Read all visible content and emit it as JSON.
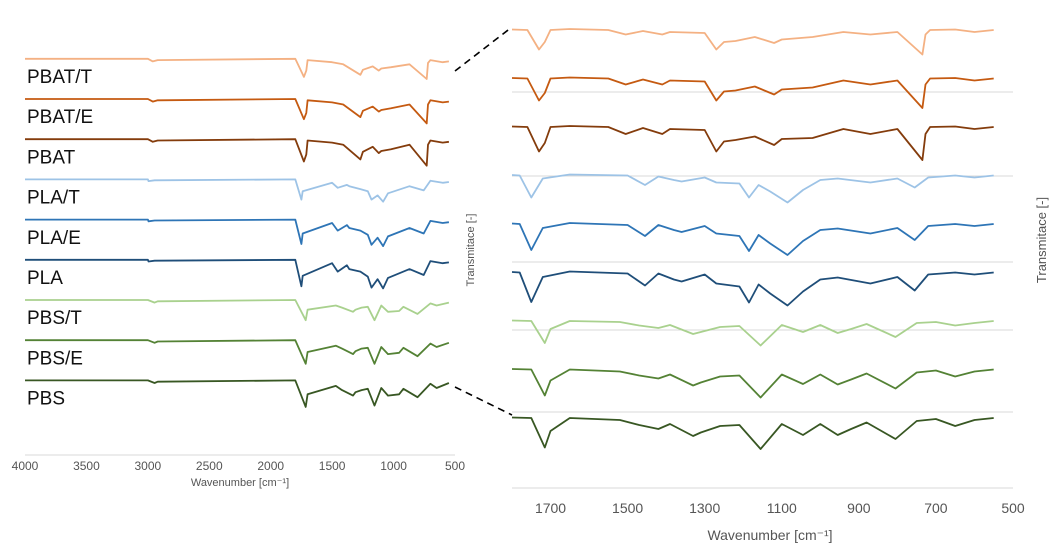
{
  "colors": {
    "PBAT/T": "#f4b183",
    "PBAT/E": "#c55a11",
    "PBAT": "#843c0c",
    "PLA/T": "#9dc3e6",
    "PLA/E": "#2e75b6",
    "PLA": "#1f4e79",
    "PBS/T": "#a9d18e",
    "PBS/E": "#548235",
    "PBS": "#385723",
    "grid": "#d9d9d9",
    "zoom_line": "#000000"
  },
  "chart_data": [
    {
      "type": "line",
      "title": "",
      "xlabel": "Wavenumber [cm⁻¹]",
      "ylabel": "Transmitace [-]",
      "xlim": [
        4000,
        500
      ],
      "x_reversed": true,
      "x_ticks": [
        "4000",
        "3500",
        "3000",
        "2500",
        "2000",
        "1500",
        "1000",
        "500"
      ],
      "legend": "labels above each trace",
      "series": [
        {
          "name": "PBAT/T",
          "x": [
            4000,
            3000,
            2960,
            2920,
            1800,
            1730,
            1710,
            1700,
            1500,
            1410,
            1270,
            1250,
            1170,
            1120,
            1100,
            1020,
            870,
            730,
            720,
            700,
            600,
            550
          ],
          "values": [
            0.98,
            0.98,
            0.92,
            0.95,
            0.98,
            0.55,
            0.7,
            0.95,
            0.9,
            0.85,
            0.6,
            0.72,
            0.8,
            0.7,
            0.75,
            0.78,
            0.85,
            0.5,
            0.88,
            0.95,
            0.9,
            0.92
          ]
        },
        {
          "name": "PBAT/E",
          "x": [
            4000,
            3000,
            2960,
            2920,
            1800,
            1730,
            1710,
            1700,
            1500,
            1410,
            1270,
            1250,
            1170,
            1120,
            1100,
            1020,
            870,
            730,
            720,
            700,
            600,
            550
          ],
          "values": [
            0.98,
            0.98,
            0.92,
            0.95,
            0.98,
            0.5,
            0.65,
            0.95,
            0.9,
            0.85,
            0.55,
            0.7,
            0.8,
            0.68,
            0.72,
            0.76,
            0.85,
            0.4,
            0.85,
            0.95,
            0.9,
            0.92
          ]
        },
        {
          "name": "PBAT",
          "x": [
            4000,
            3000,
            2960,
            2920,
            1800,
            1730,
            1710,
            1700,
            1500,
            1410,
            1270,
            1250,
            1170,
            1120,
            1100,
            1020,
            870,
            730,
            720,
            700,
            600,
            550
          ],
          "values": [
            0.98,
            0.98,
            0.92,
            0.95,
            0.98,
            0.45,
            0.62,
            0.95,
            0.9,
            0.85,
            0.5,
            0.68,
            0.8,
            0.65,
            0.7,
            0.74,
            0.85,
            0.35,
            0.85,
            0.95,
            0.9,
            0.92
          ]
        },
        {
          "name": "PLA/T",
          "x": [
            4000,
            3000,
            2995,
            2945,
            1800,
            1750,
            1740,
            1500,
            1455,
            1380,
            1360,
            1270,
            1210,
            1180,
            1130,
            1085,
            1045,
            870,
            755,
            700,
            600,
            550
          ],
          "values": [
            0.98,
            0.98,
            0.94,
            0.96,
            0.98,
            0.5,
            0.7,
            0.9,
            0.78,
            0.85,
            0.82,
            0.75,
            0.7,
            0.5,
            0.6,
            0.45,
            0.65,
            0.82,
            0.72,
            0.95,
            0.9,
            0.92
          ]
        },
        {
          "name": "PLA/E",
          "x": [
            4000,
            3000,
            2995,
            2945,
            1800,
            1750,
            1740,
            1500,
            1455,
            1380,
            1360,
            1270,
            1210,
            1180,
            1130,
            1085,
            1045,
            870,
            755,
            700,
            600,
            550
          ],
          "values": [
            0.98,
            0.98,
            0.94,
            0.96,
            0.98,
            0.4,
            0.65,
            0.9,
            0.72,
            0.85,
            0.78,
            0.72,
            0.62,
            0.38,
            0.55,
            0.35,
            0.58,
            0.78,
            0.65,
            0.95,
            0.9,
            0.92
          ]
        },
        {
          "name": "PLA",
          "x": [
            4000,
            3000,
            2995,
            2945,
            1800,
            1750,
            1740,
            1500,
            1455,
            1380,
            1360,
            1270,
            1210,
            1180,
            1130,
            1085,
            1045,
            870,
            755,
            700,
            600,
            550
          ],
          "values": [
            0.98,
            0.98,
            0.94,
            0.96,
            0.98,
            0.35,
            0.6,
            0.9,
            0.7,
            0.85,
            0.76,
            0.7,
            0.58,
            0.32,
            0.52,
            0.3,
            0.55,
            0.76,
            0.62,
            0.95,
            0.9,
            0.92
          ]
        },
        {
          "name": "PBS/T",
          "x": [
            4000,
            3000,
            2945,
            2920,
            1800,
            1715,
            1700,
            1470,
            1420,
            1330,
            1310,
            1260,
            1210,
            1155,
            1100,
            1045,
            955,
            920,
            805,
            700,
            650,
            550
          ],
          "values": [
            0.98,
            0.98,
            0.92,
            0.95,
            0.98,
            0.5,
            0.75,
            0.85,
            0.8,
            0.7,
            0.75,
            0.8,
            0.82,
            0.5,
            0.85,
            0.7,
            0.72,
            0.82,
            0.65,
            0.9,
            0.85,
            0.92
          ]
        },
        {
          "name": "PBS/E",
          "x": [
            4000,
            3000,
            2945,
            2920,
            1800,
            1715,
            1700,
            1470,
            1420,
            1330,
            1310,
            1260,
            1210,
            1155,
            1100,
            1045,
            955,
            920,
            805,
            700,
            650,
            550
          ],
          "values": [
            0.98,
            0.98,
            0.92,
            0.95,
            0.98,
            0.42,
            0.7,
            0.85,
            0.78,
            0.65,
            0.72,
            0.78,
            0.8,
            0.42,
            0.82,
            0.65,
            0.68,
            0.8,
            0.6,
            0.9,
            0.82,
            0.92
          ]
        },
        {
          "name": "PBS",
          "x": [
            4000,
            3000,
            2945,
            2920,
            1800,
            1715,
            1700,
            1470,
            1420,
            1330,
            1310,
            1260,
            1210,
            1155,
            1100,
            1045,
            955,
            920,
            805,
            700,
            650,
            550
          ],
          "values": [
            0.98,
            0.98,
            0.92,
            0.95,
            0.98,
            0.35,
            0.65,
            0.85,
            0.75,
            0.62,
            0.7,
            0.75,
            0.78,
            0.38,
            0.8,
            0.62,
            0.65,
            0.78,
            0.58,
            0.9,
            0.8,
            0.92
          ]
        }
      ]
    },
    {
      "type": "line",
      "title": "",
      "xlabel": "Wavenumber [cm⁻¹]",
      "ylabel": "Transmitace [-]",
      "xlim": [
        1800,
        500
      ],
      "x_reversed": true,
      "x_ticks": [
        "1700",
        "1500",
        "1300",
        "1100",
        "900",
        "700",
        "500"
      ],
      "legend": "none",
      "series": [
        {
          "name": "PBAT/T",
          "x": [
            1800,
            1760,
            1730,
            1715,
            1700,
            1650,
            1550,
            1505,
            1460,
            1410,
            1390,
            1300,
            1270,
            1250,
            1220,
            1170,
            1120,
            1100,
            1020,
            940,
            870,
            800,
            735,
            727,
            715,
            650,
            600,
            550
          ],
          "values": [
            0.95,
            0.94,
            0.55,
            0.7,
            0.94,
            0.96,
            0.94,
            0.85,
            0.92,
            0.85,
            0.9,
            0.88,
            0.55,
            0.7,
            0.72,
            0.8,
            0.68,
            0.75,
            0.8,
            0.9,
            0.85,
            0.9,
            0.45,
            0.85,
            0.94,
            0.95,
            0.9,
            0.94
          ]
        },
        {
          "name": "PBAT/E",
          "x": [
            1800,
            1760,
            1730,
            1715,
            1700,
            1650,
            1550,
            1505,
            1460,
            1410,
            1390,
            1300,
            1270,
            1250,
            1220,
            1170,
            1120,
            1100,
            1020,
            940,
            870,
            800,
            735,
            727,
            715,
            650,
            600,
            550
          ],
          "values": [
            0.95,
            0.94,
            0.5,
            0.65,
            0.94,
            0.96,
            0.94,
            0.82,
            0.92,
            0.82,
            0.9,
            0.88,
            0.5,
            0.68,
            0.7,
            0.78,
            0.62,
            0.72,
            0.76,
            0.9,
            0.82,
            0.9,
            0.35,
            0.82,
            0.94,
            0.95,
            0.9,
            0.94
          ]
        },
        {
          "name": "PBAT",
          "x": [
            1800,
            1760,
            1730,
            1715,
            1700,
            1650,
            1550,
            1505,
            1460,
            1410,
            1390,
            1300,
            1270,
            1250,
            1220,
            1170,
            1120,
            1100,
            1020,
            940,
            870,
            800,
            735,
            727,
            715,
            650,
            600,
            550
          ],
          "values": [
            0.95,
            0.94,
            0.45,
            0.62,
            0.94,
            0.96,
            0.94,
            0.8,
            0.92,
            0.8,
            0.9,
            0.88,
            0.45,
            0.65,
            0.68,
            0.75,
            0.58,
            0.7,
            0.72,
            0.9,
            0.8,
            0.9,
            0.28,
            0.8,
            0.94,
            0.95,
            0.9,
            0.94
          ]
        },
        {
          "name": "PLA/T",
          "x": [
            1800,
            1780,
            1750,
            1720,
            1650,
            1500,
            1455,
            1420,
            1380,
            1360,
            1300,
            1270,
            1210,
            1185,
            1160,
            1130,
            1085,
            1045,
            1000,
            955,
            870,
            800,
            755,
            720,
            650,
            600,
            550
          ],
          "values": [
            0.95,
            0.94,
            0.5,
            0.88,
            0.96,
            0.94,
            0.75,
            0.92,
            0.85,
            0.82,
            0.9,
            0.8,
            0.78,
            0.5,
            0.75,
            0.62,
            0.4,
            0.65,
            0.85,
            0.88,
            0.8,
            0.88,
            0.7,
            0.9,
            0.94,
            0.9,
            0.94
          ]
        },
        {
          "name": "PLA/E",
          "x": [
            1800,
            1780,
            1750,
            1720,
            1650,
            1500,
            1455,
            1420,
            1380,
            1360,
            1300,
            1270,
            1210,
            1185,
            1160,
            1130,
            1085,
            1045,
            1000,
            955,
            870,
            800,
            755,
            720,
            650,
            600,
            550
          ],
          "values": [
            0.95,
            0.94,
            0.42,
            0.86,
            0.96,
            0.92,
            0.7,
            0.92,
            0.82,
            0.78,
            0.9,
            0.75,
            0.7,
            0.4,
            0.72,
            0.55,
            0.32,
            0.6,
            0.82,
            0.85,
            0.75,
            0.86,
            0.62,
            0.9,
            0.94,
            0.9,
            0.94
          ]
        },
        {
          "name": "PLA",
          "x": [
            1800,
            1780,
            1750,
            1720,
            1650,
            1500,
            1455,
            1420,
            1380,
            1360,
            1300,
            1270,
            1210,
            1185,
            1160,
            1130,
            1085,
            1045,
            1000,
            955,
            870,
            800,
            755,
            720,
            650,
            600,
            550
          ],
          "values": [
            0.95,
            0.94,
            0.35,
            0.85,
            0.96,
            0.92,
            0.68,
            0.92,
            0.8,
            0.76,
            0.9,
            0.72,
            0.66,
            0.34,
            0.7,
            0.52,
            0.28,
            0.56,
            0.8,
            0.84,
            0.72,
            0.85,
            0.58,
            0.9,
            0.94,
            0.9,
            0.94
          ]
        },
        {
          "name": "PBS/T",
          "x": [
            1800,
            1750,
            1715,
            1700,
            1650,
            1520,
            1470,
            1420,
            1390,
            1330,
            1310,
            1260,
            1210,
            1155,
            1100,
            1045,
            1000,
            955,
            920,
            880,
            805,
            750,
            700,
            650,
            600,
            550
          ],
          "values": [
            0.95,
            0.94,
            0.5,
            0.78,
            0.94,
            0.92,
            0.85,
            0.8,
            0.86,
            0.68,
            0.72,
            0.82,
            0.84,
            0.45,
            0.86,
            0.72,
            0.86,
            0.7,
            0.78,
            0.88,
            0.62,
            0.9,
            0.92,
            0.85,
            0.9,
            0.94
          ]
        },
        {
          "name": "PBS/E",
          "x": [
            1800,
            1750,
            1715,
            1700,
            1650,
            1520,
            1470,
            1420,
            1390,
            1330,
            1310,
            1260,
            1210,
            1155,
            1100,
            1045,
            1000,
            955,
            920,
            880,
            805,
            750,
            700,
            650,
            600,
            550
          ],
          "values": [
            0.95,
            0.94,
            0.42,
            0.72,
            0.94,
            0.9,
            0.82,
            0.76,
            0.84,
            0.62,
            0.68,
            0.8,
            0.82,
            0.38,
            0.84,
            0.65,
            0.84,
            0.64,
            0.74,
            0.86,
            0.56,
            0.88,
            0.92,
            0.8,
            0.9,
            0.94
          ]
        },
        {
          "name": "PBS",
          "x": [
            1800,
            1750,
            1715,
            1700,
            1650,
            1520,
            1470,
            1420,
            1390,
            1330,
            1310,
            1260,
            1210,
            1155,
            1100,
            1045,
            1000,
            955,
            920,
            880,
            805,
            750,
            700,
            650,
            600,
            550
          ],
          "values": [
            0.95,
            0.94,
            0.35,
            0.68,
            0.94,
            0.9,
            0.8,
            0.72,
            0.82,
            0.58,
            0.65,
            0.78,
            0.8,
            0.32,
            0.82,
            0.6,
            0.82,
            0.6,
            0.72,
            0.85,
            0.52,
            0.88,
            0.92,
            0.78,
            0.9,
            0.94
          ]
        }
      ]
    }
  ]
}
